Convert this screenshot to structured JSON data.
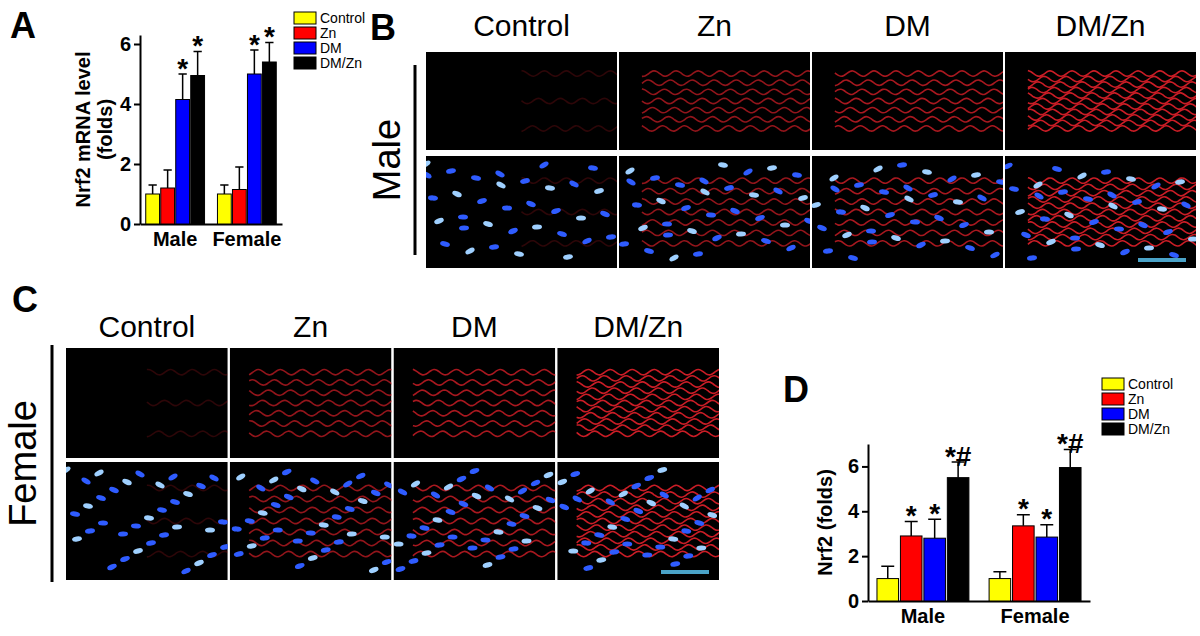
{
  "chart_data": [
    {
      "type": "bar",
      "title": "A",
      "y_label": [
        "Nrf2 mRNA level",
        "(folds)"
      ],
      "categories": [
        "Male",
        "Female"
      ],
      "series": [
        {
          "name": "Control",
          "color": "#ffff00",
          "values": [
            1.0,
            1.0
          ],
          "errors": [
            0.3,
            0.3
          ]
        },
        {
          "name": "Zn",
          "color": "#ff0000",
          "values": [
            1.2,
            1.15
          ],
          "errors": [
            0.6,
            0.75
          ]
        },
        {
          "name": "DM",
          "color": "#0000ff",
          "values": [
            4.15,
            5.0
          ],
          "errors": [
            0.85,
            0.8
          ],
          "annotations": [
            "*",
            "*"
          ]
        },
        {
          "name": "DM/Zn",
          "color": "#000000",
          "values": [
            4.95,
            5.4
          ],
          "errors": [
            0.8,
            0.65
          ],
          "annotations": [
            "*",
            "*"
          ]
        }
      ],
      "ylim": [
        0,
        6.3
      ],
      "yticks": [
        0,
        2,
        4,
        6
      ],
      "legend": "right"
    },
    {
      "type": "image",
      "title": "B",
      "columns": [
        "Control",
        "Zn",
        "DM",
        "DM/Zn"
      ],
      "row_label": "Male"
    },
    {
      "type": "image",
      "title": "C",
      "columns": [
        "Control",
        "Zn",
        "DM",
        "DM/Zn"
      ],
      "row_label": "Female"
    },
    {
      "type": "bar",
      "title": "D",
      "y_label": [
        "Nrf2 (folds)"
      ],
      "categories": [
        "Male",
        "Female"
      ],
      "series": [
        {
          "name": "Control",
          "color": "#ffff00",
          "values": [
            1.0,
            1.0
          ],
          "errors": [
            0.55,
            0.3
          ]
        },
        {
          "name": "Zn",
          "color": "#ff0000",
          "values": [
            2.9,
            3.35
          ],
          "errors": [
            0.65,
            0.5
          ],
          "annotations": [
            "*",
            "*"
          ]
        },
        {
          "name": "DM",
          "color": "#0000ff",
          "values": [
            2.8,
            2.85
          ],
          "errors": [
            0.85,
            0.55
          ],
          "annotations": [
            "*",
            "*"
          ]
        },
        {
          "name": "DM/Zn",
          "color": "#000000",
          "values": [
            5.5,
            5.95
          ],
          "errors": [
            0.7,
            0.8
          ],
          "annotations": [
            "*#",
            "*#"
          ]
        }
      ],
      "ylim": [
        0,
        7
      ],
      "yticks": [
        0,
        2,
        4,
        6
      ],
      "legend": "right"
    }
  ]
}
